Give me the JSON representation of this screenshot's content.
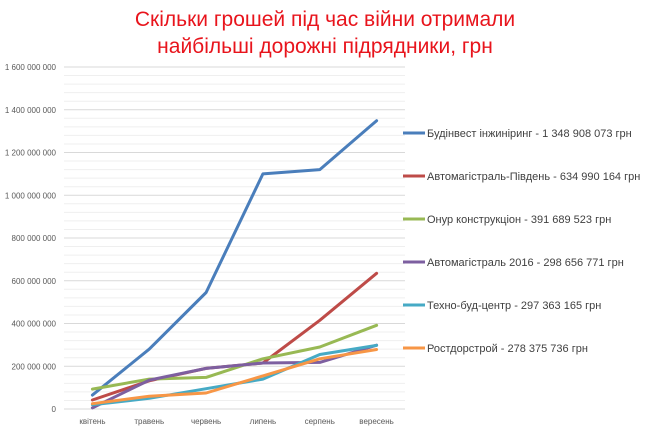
{
  "chart_data": {
    "type": "line",
    "title_line1": "Скільки грошей під час війни отримали",
    "title_line2": "найбільші дорожні підрядники, грн",
    "xlabel": "",
    "ylabel": "",
    "ylim": [
      0,
      1600000000
    ],
    "y_ticks": [
      0,
      200000000,
      400000000,
      600000000,
      800000000,
      1000000000,
      1200000000,
      1400000000,
      1600000000
    ],
    "y_tick_labels": [
      "0",
      "200 000 000",
      "400 000 000",
      "600 000 000",
      "800 000 000",
      "1 000 000 000",
      "1 200 000 000",
      "1 400 000 000",
      "1 600 000 000"
    ],
    "grid": true,
    "legend_position": "right",
    "categories": [
      "квітень",
      "травень",
      "червень",
      "липень",
      "серпень",
      "вересень"
    ],
    "series": [
      {
        "name": "Будінвест інжиніринг - 1 348 908 073 грн",
        "color": "#4a7ebb",
        "values": [
          65000000,
          280000000,
          545000000,
          1100000000,
          1120000000,
          1348908073
        ]
      },
      {
        "name": "Автомагістраль-Південь - 634 990 164 грн",
        "color": "#be4b48",
        "values": [
          42000000,
          132000000,
          190000000,
          215000000,
          415000000,
          634990164
        ]
      },
      {
        "name": "Онур конструкціон - 391 689 523 грн",
        "color": "#98b954",
        "values": [
          93000000,
          140000000,
          148000000,
          235000000,
          290000000,
          391689523
        ]
      },
      {
        "name": "Автомагістраль 2016 - 298 656 771 грн",
        "color": "#7d5fa0",
        "values": [
          5000000,
          135000000,
          190000000,
          215000000,
          218000000,
          298656771
        ]
      },
      {
        "name": "Техно-буд-центр - 297 363 165 грн",
        "color": "#46aac5",
        "values": [
          20000000,
          50000000,
          95000000,
          140000000,
          255000000,
          297363165
        ]
      },
      {
        "name": "Ростдорстрой - 278 375 736 грн",
        "color": "#f79646",
        "values": [
          25000000,
          60000000,
          75000000,
          155000000,
          235000000,
          278375736
        ]
      }
    ]
  }
}
